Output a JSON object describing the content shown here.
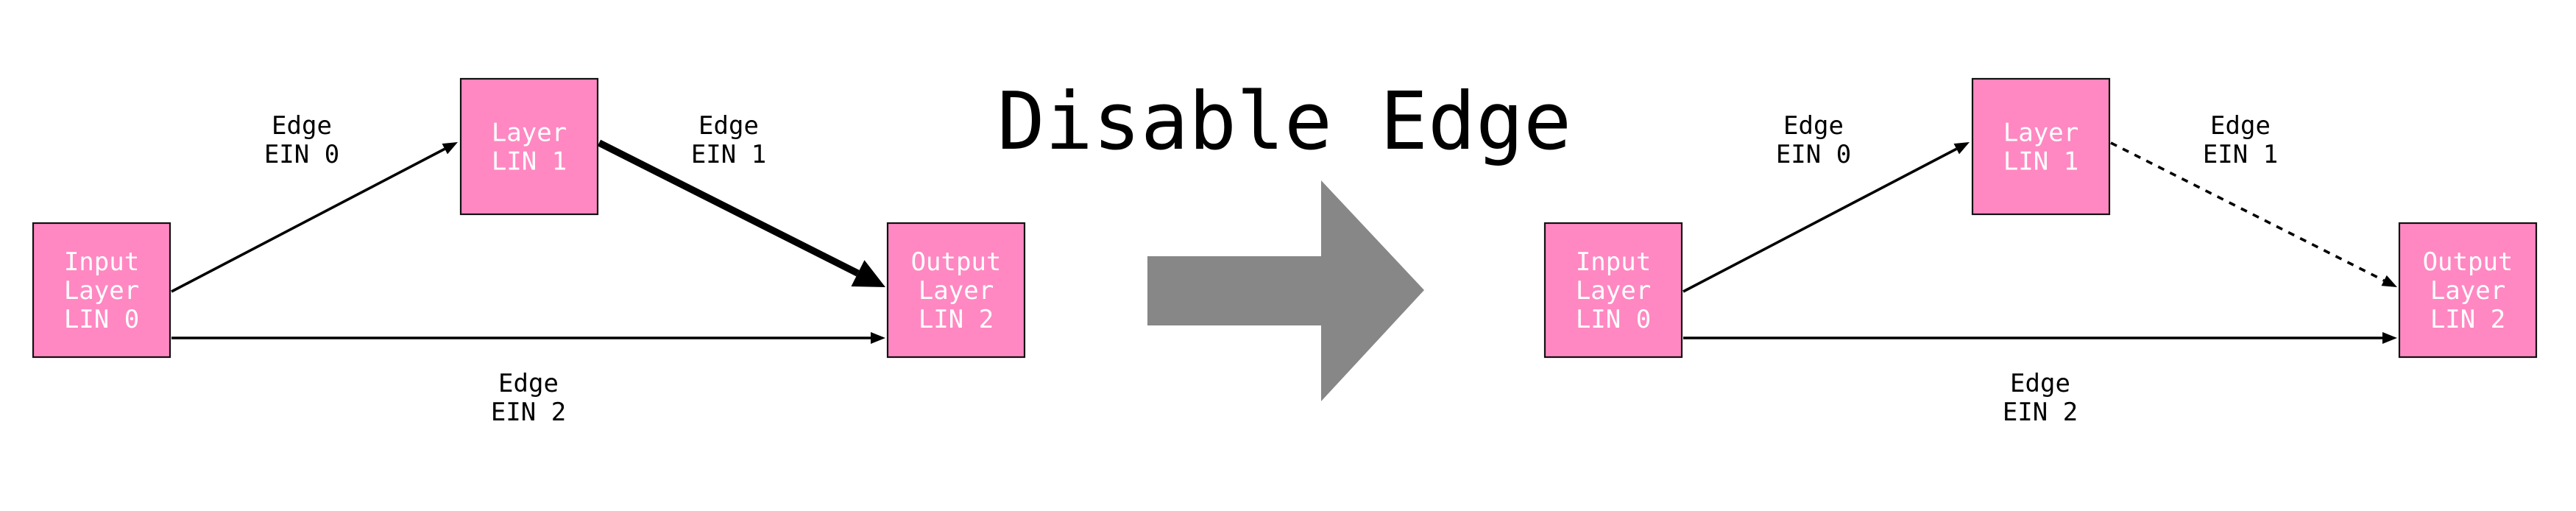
{
  "title": "Disable Edge",
  "colors": {
    "node_fill": "#ff88c2",
    "node_stroke": "#111111",
    "node_text": "#ffffff",
    "edge_color": "#000000",
    "transition_arrow": "#878787",
    "background": "#ffffff"
  },
  "transition_icon": "right-arrow-icon",
  "panels": [
    {
      "id": "before",
      "nodes": [
        {
          "id": "input",
          "lines": [
            "Input",
            "Layer",
            "LIN 0"
          ]
        },
        {
          "id": "layer",
          "lines": [
            "Layer",
            "LIN 1"
          ]
        },
        {
          "id": "output",
          "lines": [
            "Output",
            "Layer",
            "LIN 2"
          ]
        }
      ],
      "edges": [
        {
          "id": "ein0",
          "from": "input",
          "to": "layer",
          "style": "solid",
          "lines": [
            "Edge",
            "EIN 0"
          ]
        },
        {
          "id": "ein1",
          "from": "layer",
          "to": "output",
          "style": "bold",
          "lines": [
            "Edge",
            "EIN 1"
          ]
        },
        {
          "id": "ein2",
          "from": "input",
          "to": "output",
          "style": "solid",
          "lines": [
            "Edge",
            "EIN 2"
          ]
        }
      ]
    },
    {
      "id": "after",
      "nodes": [
        {
          "id": "input",
          "lines": [
            "Input",
            "Layer",
            "LIN 0"
          ]
        },
        {
          "id": "layer",
          "lines": [
            "Layer",
            "LIN 1"
          ]
        },
        {
          "id": "output",
          "lines": [
            "Output",
            "Layer",
            "LIN 2"
          ]
        }
      ],
      "edges": [
        {
          "id": "ein0",
          "from": "input",
          "to": "layer",
          "style": "solid",
          "lines": [
            "Edge",
            "EIN 0"
          ]
        },
        {
          "id": "ein1",
          "from": "layer",
          "to": "output",
          "style": "dashed",
          "lines": [
            "Edge",
            "EIN 1"
          ]
        },
        {
          "id": "ein2",
          "from": "input",
          "to": "output",
          "style": "solid",
          "lines": [
            "Edge",
            "EIN 2"
          ]
        }
      ]
    }
  ]
}
